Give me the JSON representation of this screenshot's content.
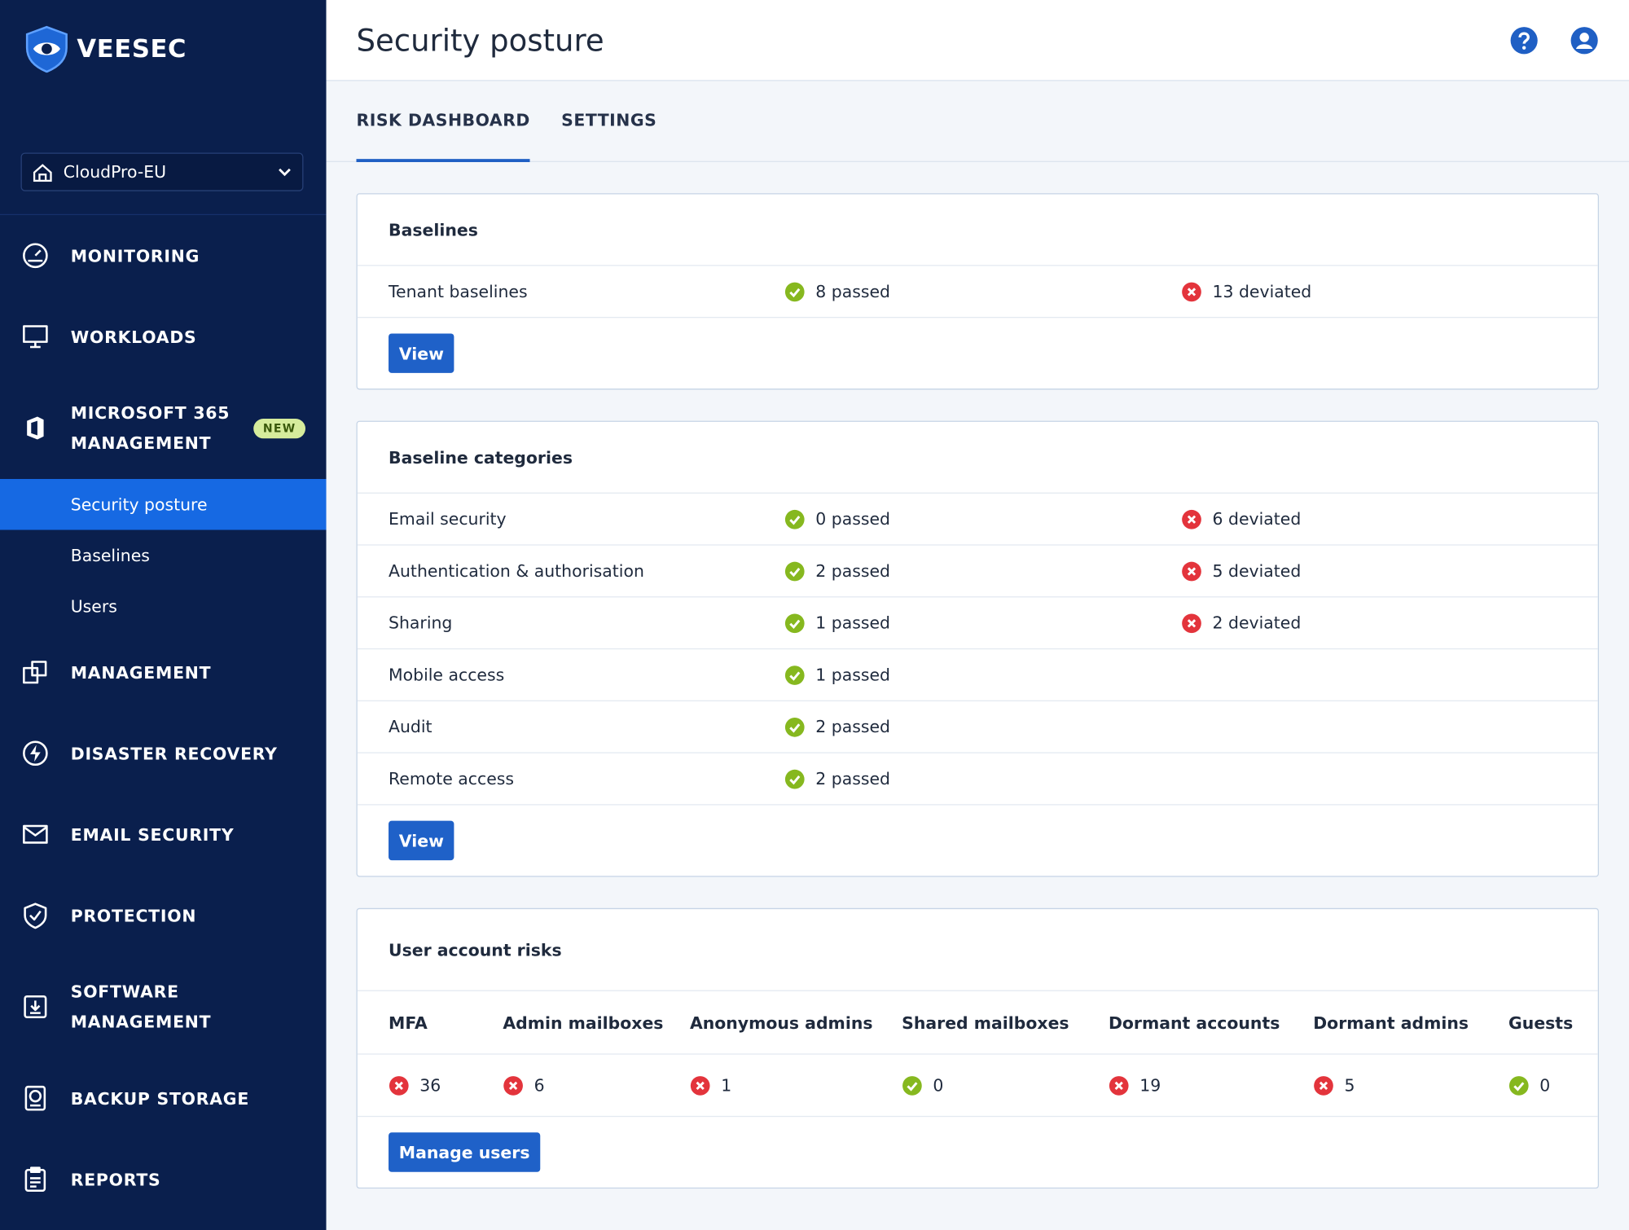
{
  "brand": "VEESEC",
  "tenant": "CloudPro-EU",
  "nav": [
    {
      "label": "MONITORING"
    },
    {
      "label": "WORKLOADS"
    },
    {
      "label": "MICROSOFT 365 MANAGEMENT",
      "badge": "NEW",
      "children": [
        {
          "label": "Security posture",
          "active": true
        },
        {
          "label": "Baselines"
        },
        {
          "label": "Users"
        }
      ]
    },
    {
      "label": "MANAGEMENT"
    },
    {
      "label": "DISASTER RECOVERY"
    },
    {
      "label": "EMAIL SECURITY"
    },
    {
      "label": "PROTECTION"
    },
    {
      "label": "SOFTWARE MANAGEMENT"
    },
    {
      "label": "BACKUP STORAGE"
    },
    {
      "label": "REPORTS"
    }
  ],
  "header": {
    "title": "Security posture"
  },
  "tabs": [
    {
      "label": "RISK DASHBOARD",
      "active": true
    },
    {
      "label": "SETTINGS"
    }
  ],
  "sections": [
    {
      "title": "Baselines",
      "rows": [
        {
          "name": "Tenant baselines",
          "passed": "8 passed",
          "deviated": "13 deviated"
        }
      ],
      "button": "View"
    },
    {
      "title": "Baseline categories",
      "rows": [
        {
          "name": "Email security",
          "passed": "0 passed",
          "deviated": "6 deviated"
        },
        {
          "name": "Authentication & authorisation",
          "passed": "2 passed",
          "deviated": "5 deviated"
        },
        {
          "name": "Sharing",
          "passed": "1 passed",
          "deviated": "2 deviated"
        },
        {
          "name": "Mobile access",
          "passed": "1 passed"
        },
        {
          "name": "Audit",
          "passed": "2 passed"
        },
        {
          "name": "Remote access",
          "passed": "2 passed"
        }
      ],
      "button": "View"
    },
    {
      "title": "User account risks",
      "columns": [
        {
          "name": "MFA",
          "value": 36,
          "status": "fail"
        },
        {
          "name": "Admin mailboxes",
          "value": 6,
          "status": "fail"
        },
        {
          "name": "Anonymous admins",
          "value": 1,
          "status": "fail"
        },
        {
          "name": "Shared mailboxes",
          "value": 0,
          "status": "pass"
        },
        {
          "name": "Dormant accounts",
          "value": 19,
          "status": "fail"
        },
        {
          "name": "Dormant admins",
          "value": 5,
          "status": "fail"
        },
        {
          "name": "Guests",
          "value": 0,
          "status": "pass"
        }
      ],
      "button": "Manage users"
    }
  ]
}
